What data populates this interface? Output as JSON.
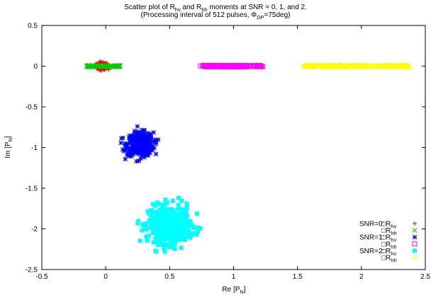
{
  "chart_data": {
    "type": "scatter",
    "title_line1": "Scatter plot of R_hv and R_hh moments at SNR = 0, 1, and 2.",
    "title_line2": "(Processing interval of 512 pulses,  Φ_DP=75deg)",
    "xlabel": "Re [P_N]",
    "ylabel": "Im [P_N]",
    "xlim": [
      -0.5,
      2.5
    ],
    "ylim": [
      -2.5,
      0.5
    ],
    "xticks": [
      "-0.5",
      "0",
      "0.5",
      "1",
      "1.5",
      "2",
      "2.5"
    ],
    "yticks": [
      "0.5",
      "0",
      "-0.5",
      "-1",
      "-1.5",
      "-2",
      "-2.5"
    ],
    "legend_placement": "bottom-right",
    "legend": [
      {
        "snr": "SNR=0:",
        "label": "R_hv",
        "marker": "+",
        "color": "#ff0000"
      },
      {
        "snr": "",
        "label": "R_hh",
        "marker": "x",
        "color": "#00cc00"
      },
      {
        "snr": "SNR=1:",
        "label": "R_hv",
        "marker": "*",
        "color": "#0000ff"
      },
      {
        "snr": "",
        "label": "R_hh",
        "marker": "square-open",
        "color": "#ff00ff"
      },
      {
        "snr": "SNR=2:",
        "label": "R_hv",
        "marker": "square-filled",
        "color": "#00ffff"
      },
      {
        "snr": "",
        "label": "R_hh",
        "marker": "circle-open",
        "color": "#ffff00"
      }
    ],
    "series": [
      {
        "snr": 0,
        "quantity": "R_hv",
        "marker": "+",
        "color": "#ff0000",
        "center": [
          -0.03,
          0.0
        ],
        "spread_x": [
          -0.08,
          0.04
        ],
        "spread_y": [
          -0.06,
          0.07
        ],
        "count": 260
      },
      {
        "snr": 0,
        "quantity": "R_hh",
        "marker": "x",
        "color": "#00cc00",
        "center": [
          0.0,
          0.0
        ],
        "spread_x": [
          -0.15,
          0.12
        ],
        "spread_y": [
          -0.01,
          0.01
        ],
        "count": 120
      },
      {
        "snr": 1,
        "quantity": "R_hv",
        "marker": "*",
        "color": "#0000ff",
        "center": [
          0.27,
          -0.96
        ],
        "spread_x": [
          0.1,
          0.41
        ],
        "spread_y": [
          -1.17,
          -0.74
        ],
        "count": 450
      },
      {
        "snr": 1,
        "quantity": "R_hh",
        "marker": "square-open",
        "color": "#ff00ff",
        "center": [
          0.98,
          0.0
        ],
        "spread_x": [
          0.74,
          1.23
        ],
        "spread_y": [
          -0.01,
          0.01
        ],
        "count": 150
      },
      {
        "snr": 2,
        "quantity": "R_hv",
        "marker": "square-filled",
        "color": "#00ffff",
        "center": [
          0.5,
          -1.95
        ],
        "spread_x": [
          0.25,
          0.74
        ],
        "spread_y": [
          -2.28,
          -1.6
        ],
        "count": 520
      },
      {
        "snr": 2,
        "quantity": "R_hh",
        "marker": "circle-open",
        "color": "#ffff00",
        "center": [
          2.0,
          0.0
        ],
        "spread_x": [
          1.55,
          2.38
        ],
        "spread_y": [
          -0.01,
          0.01
        ],
        "count": 220
      }
    ]
  }
}
